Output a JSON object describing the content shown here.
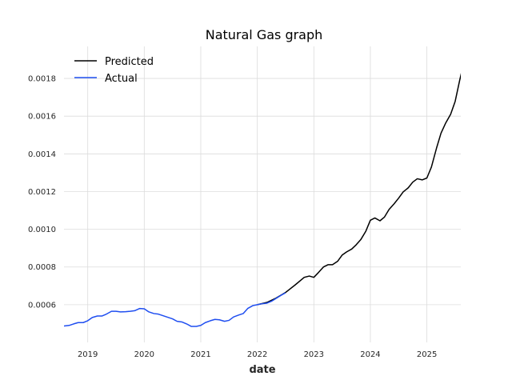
{
  "chart_data": {
    "type": "line",
    "title": "Natural Gas graph",
    "xlabel": "date",
    "ylabel": "",
    "xlim": [
      2018.58,
      2025.6
    ],
    "ylim": [
      0.0004,
      0.00197
    ],
    "x_ticks": [
      2019,
      2020,
      2021,
      2022,
      2023,
      2024,
      2025
    ],
    "x_tick_labels": [
      "2019",
      "2020",
      "2021",
      "2022",
      "2023",
      "2024",
      "2025"
    ],
    "y_ticks": [
      0.0006,
      0.0008,
      0.001,
      0.0012,
      0.0014,
      0.0016,
      0.0018
    ],
    "y_tick_labels": [
      "0.0006",
      "0.0008",
      "0.0010",
      "0.0012",
      "0.0014",
      "0.0016",
      "0.0018"
    ],
    "grid": true,
    "legend_position": "top-left",
    "series": [
      {
        "name": "Predicted",
        "color": "#000000",
        "points": [
          [
            2022.0,
            0.0006
          ],
          [
            2022.17,
            0.000612
          ],
          [
            2022.33,
            0.000635
          ],
          [
            2022.5,
            0.000665
          ],
          [
            2022.67,
            0.000705
          ],
          [
            2022.83,
            0.000745
          ],
          [
            2022.92,
            0.000752
          ],
          [
            2023.0,
            0.000745
          ],
          [
            2023.08,
            0.00077
          ],
          [
            2023.17,
            0.0008
          ],
          [
            2023.25,
            0.000812
          ],
          [
            2023.33,
            0.000812
          ],
          [
            2023.42,
            0.00083
          ],
          [
            2023.5,
            0.000863
          ],
          [
            2023.58,
            0.00088
          ],
          [
            2023.67,
            0.000895
          ],
          [
            2023.75,
            0.000918
          ],
          [
            2023.83,
            0.000945
          ],
          [
            2023.92,
            0.00099
          ],
          [
            2024.0,
            0.001048
          ],
          [
            2024.08,
            0.00106
          ],
          [
            2024.17,
            0.001045
          ],
          [
            2024.25,
            0.001065
          ],
          [
            2024.33,
            0.001105
          ],
          [
            2024.42,
            0.001135
          ],
          [
            2024.5,
            0.001165
          ],
          [
            2024.58,
            0.001198
          ],
          [
            2024.67,
            0.00122
          ],
          [
            2024.75,
            0.00125
          ],
          [
            2024.83,
            0.001268
          ],
          [
            2024.92,
            0.001262
          ],
          [
            2025.0,
            0.001272
          ],
          [
            2025.08,
            0.00133
          ],
          [
            2025.17,
            0.00143
          ],
          [
            2025.25,
            0.00151
          ],
          [
            2025.33,
            0.001562
          ],
          [
            2025.42,
            0.00161
          ],
          [
            2025.5,
            0.001678
          ],
          [
            2025.58,
            0.00179
          ],
          [
            2025.67,
            0.001905
          ]
        ]
      },
      {
        "name": "Actual",
        "color": "#1f4ef0",
        "points": [
          [
            2018.58,
            0.000487
          ],
          [
            2018.67,
            0.00049
          ],
          [
            2018.75,
            0.000498
          ],
          [
            2018.83,
            0.000505
          ],
          [
            2018.92,
            0.000505
          ],
          [
            2019.0,
            0.000515
          ],
          [
            2019.08,
            0.000532
          ],
          [
            2019.17,
            0.00054
          ],
          [
            2019.25,
            0.00054
          ],
          [
            2019.33,
            0.00055
          ],
          [
            2019.42,
            0.000565
          ],
          [
            2019.5,
            0.000565
          ],
          [
            2019.58,
            0.000562
          ],
          [
            2019.67,
            0.000563
          ],
          [
            2019.75,
            0.000565
          ],
          [
            2019.83,
            0.000568
          ],
          [
            2019.92,
            0.00058
          ],
          [
            2020.0,
            0.000578
          ],
          [
            2020.08,
            0.000562
          ],
          [
            2020.17,
            0.000553
          ],
          [
            2020.25,
            0.00055
          ],
          [
            2020.33,
            0.000542
          ],
          [
            2020.42,
            0.000533
          ],
          [
            2020.5,
            0.000525
          ],
          [
            2020.58,
            0.000512
          ],
          [
            2020.67,
            0.000508
          ],
          [
            2020.75,
            0.000498
          ],
          [
            2020.83,
            0.000485
          ],
          [
            2020.92,
            0.000485
          ],
          [
            2021.0,
            0.00049
          ],
          [
            2021.08,
            0.000505
          ],
          [
            2021.17,
            0.000515
          ],
          [
            2021.25,
            0.000522
          ],
          [
            2021.33,
            0.00052
          ],
          [
            2021.42,
            0.000512
          ],
          [
            2021.5,
            0.000517
          ],
          [
            2021.58,
            0.000535
          ],
          [
            2021.67,
            0.000545
          ],
          [
            2021.75,
            0.000553
          ],
          [
            2021.83,
            0.00058
          ],
          [
            2021.92,
            0.000595
          ],
          [
            2022.0,
            0.0006
          ],
          [
            2022.08,
            0.000605
          ],
          [
            2022.17,
            0.000608
          ],
          [
            2022.25,
            0.000618
          ],
          [
            2022.33,
            0.000633
          ],
          [
            2022.42,
            0.00065
          ],
          [
            2022.5,
            0.000663
          ]
        ]
      }
    ]
  }
}
